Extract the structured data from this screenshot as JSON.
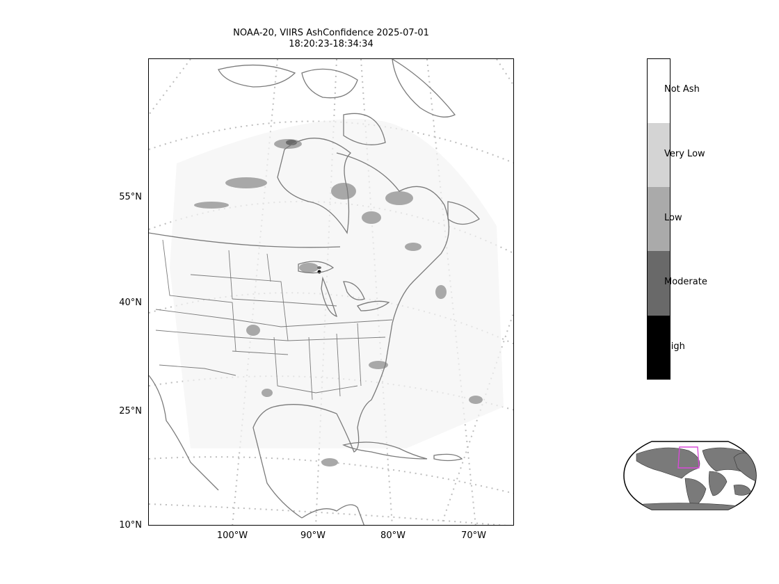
{
  "title": {
    "line1": "NOAA-20, VIIRS AshConfidence 2025-07-01",
    "line2": "18:20:23-18:34:34"
  },
  "lat_ticks": [
    "55°N",
    "40°N",
    "25°N",
    "10°N"
  ],
  "lon_ticks": [
    "100°W",
    "90°W",
    "80°W",
    "70°W"
  ],
  "colorbar": {
    "categories": [
      {
        "label": "Not Ash",
        "color": "#ffffff"
      },
      {
        "label": "Very Low",
        "color": "#d4d4d4"
      },
      {
        "label": "Low",
        "color": "#aaaaaa"
      },
      {
        "label": "Moderate",
        "color": "#696969"
      },
      {
        "label": "High",
        "color": "#000000"
      }
    ]
  },
  "colors": {
    "coastline": "#7a7a7a",
    "gridline": "#bdbdbd",
    "inset_land": "#7a7a7a",
    "inset_box": "#d94ad9"
  }
}
